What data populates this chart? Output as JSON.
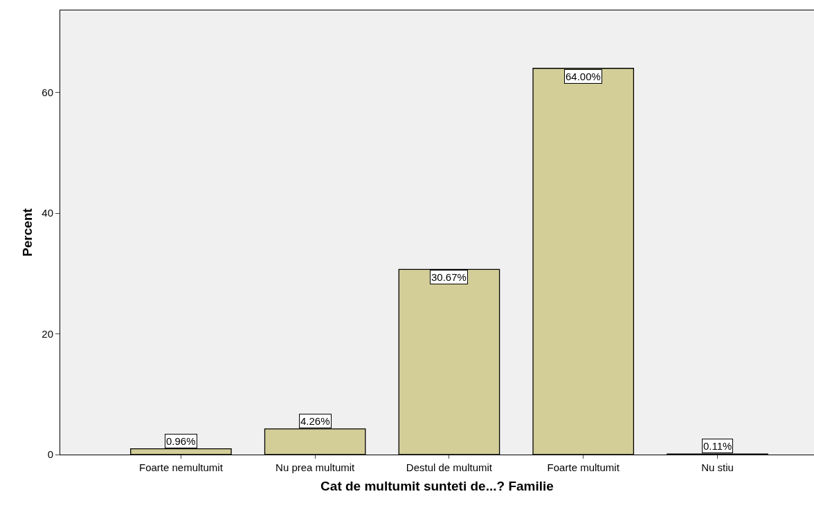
{
  "chart_data": {
    "type": "bar",
    "xlabel": "Cat de multumit sunteti de...? Familie",
    "ylabel": "Percent",
    "categories": [
      "Foarte nemultumit",
      "Nu prea multumit",
      "Destul de multumit",
      "Foarte multumit",
      "Nu stiu"
    ],
    "values": [
      0.96,
      4.26,
      30.67,
      64.0,
      0.11
    ],
    "value_labels": [
      "0.96%",
      "4.26%",
      "30.67%",
      "64.00%",
      "0.11%"
    ],
    "color": "#d3ce98",
    "ylim": [
      0,
      73.6
    ],
    "yticks": [
      0,
      20,
      40,
      60
    ],
    "grid": false,
    "legend": false
  }
}
